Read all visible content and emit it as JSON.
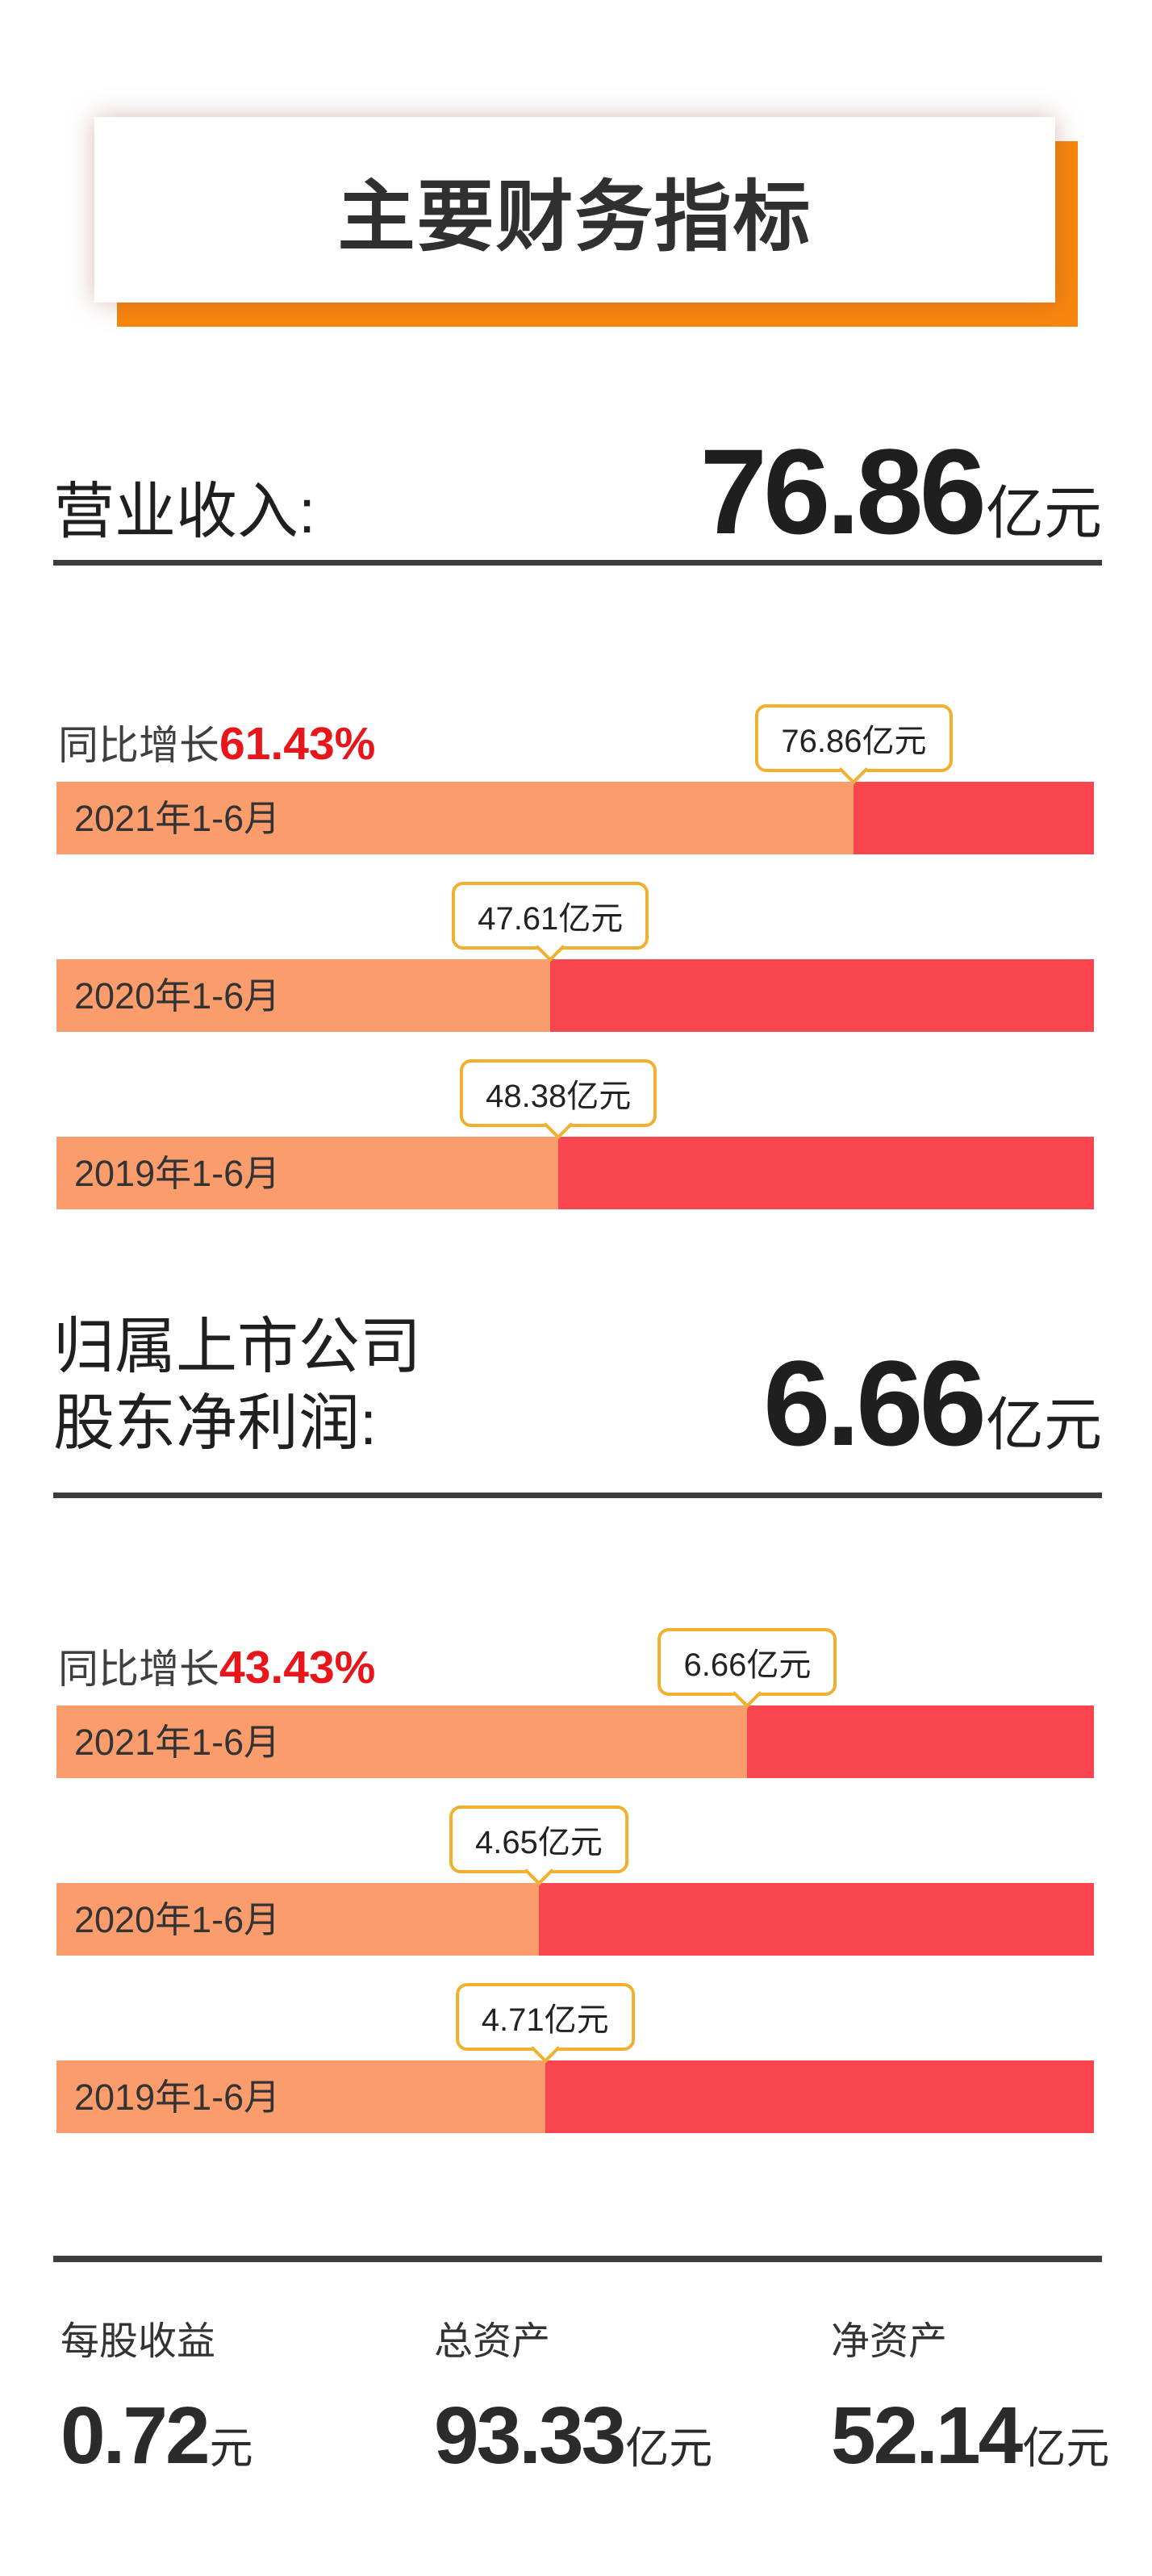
{
  "title": {
    "text": "主要财务指标"
  },
  "colors": {
    "accent_orange": "#F8860D",
    "bar_fill": "#FB9C6C",
    "bar_remainder": "#F9454E",
    "callout_border": "#F2AF2D",
    "growth_red": "#E8151B",
    "rule_dark": "#3d3d3d"
  },
  "sections": [
    {
      "label": "营业收入:",
      "value": "76.86",
      "unit": "亿元",
      "growth_label": "同比增长",
      "growth_value": "61.43%",
      "bars": [
        {
          "label": "2021年1-6月",
          "callout": "76.86亿元",
          "fill_pct": 76.86
        },
        {
          "label": "2020年1-6月",
          "callout": "47.61亿元",
          "fill_pct": 47.61
        },
        {
          "label": "2019年1-6月",
          "callout": "48.38亿元",
          "fill_pct": 48.38
        }
      ]
    },
    {
      "label_line1": "归属上市公司",
      "label_line2": "股东净利润:",
      "value": "6.66",
      "unit": "亿元",
      "growth_label": "同比增长",
      "growth_value": "43.43%",
      "bars": [
        {
          "label": "2021年1-6月",
          "callout": "6.66亿元",
          "fill_pct": 66.6
        },
        {
          "label": "2020年1-6月",
          "callout": "4.65亿元",
          "fill_pct": 46.5
        },
        {
          "label": "2019年1-6月",
          "callout": "4.71亿元",
          "fill_pct": 47.1
        }
      ]
    }
  ],
  "footer_metrics": [
    {
      "label": "每股收益",
      "value": "0.72",
      "unit": "元"
    },
    {
      "label": "总资产",
      "value": "93.33",
      "unit": "亿元"
    },
    {
      "label": "净资产",
      "value": "52.14",
      "unit": "亿元"
    }
  ],
  "chart_data": [
    {
      "type": "bar",
      "title": "营业收入",
      "unit": "亿元",
      "categories": [
        "2021年1-6月",
        "2020年1-6月",
        "2019年1-6月"
      ],
      "values": [
        76.86,
        47.61,
        48.38
      ],
      "yoy_growth": "61.43%",
      "xlim": [
        0,
        100
      ],
      "legend": "off",
      "grid": "off"
    },
    {
      "type": "bar",
      "title": "归属上市公司股东净利润",
      "unit": "亿元",
      "categories": [
        "2021年1-6月",
        "2020年1-6月",
        "2019年1-6月"
      ],
      "values": [
        6.66,
        4.65,
        4.71
      ],
      "yoy_growth": "43.43%",
      "xlim": [
        0,
        10
      ],
      "legend": "off",
      "grid": "off"
    }
  ]
}
